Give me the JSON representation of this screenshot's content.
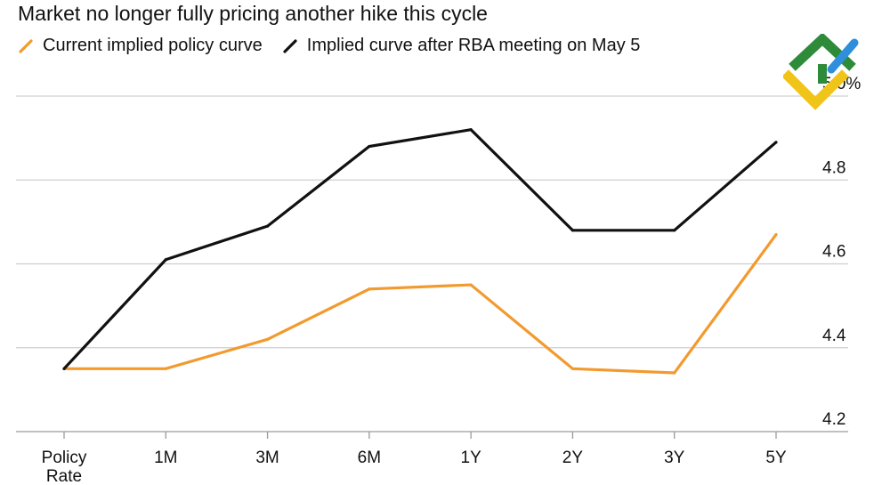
{
  "chart_data": {
    "type": "line",
    "title": "Market no longer fully pricing another hike this cycle",
    "categories": [
      "Policy Rate",
      "1M",
      "3M",
      "6M",
      "1Y",
      "2Y",
      "3Y",
      "5Y"
    ],
    "category_labels": [
      [
        "Policy",
        "Rate"
      ],
      [
        "1M"
      ],
      [
        "3M"
      ],
      [
        "6M"
      ],
      [
        "1Y"
      ],
      [
        "2Y"
      ],
      [
        "3Y"
      ],
      [
        "5Y"
      ]
    ],
    "series": [
      {
        "name": "Current implied policy curve",
        "color": "#f29a2e",
        "values": [
          4.35,
          4.35,
          4.42,
          4.54,
          4.55,
          4.35,
          4.34,
          4.67
        ]
      },
      {
        "name": "Implied curve after RBA meeting on May 5",
        "color": "#111111",
        "values": [
          4.35,
          4.61,
          4.69,
          4.88,
          4.92,
          4.68,
          4.68,
          4.89
        ]
      }
    ],
    "ylim": [
      4.2,
      5.0
    ],
    "yticks": [
      {
        "value": 4.2,
        "label": "4.2"
      },
      {
        "value": 4.4,
        "label": "4.4"
      },
      {
        "value": 4.6,
        "label": "4.6"
      },
      {
        "value": 4.8,
        "label": "4.8"
      },
      {
        "value": 5.0,
        "label": "5.0%"
      }
    ],
    "grid": true,
    "legend_position": "top-left",
    "axis_side": "right"
  },
  "logo": {
    "colors": [
      "#2e8b3a",
      "#f0c419",
      "#2f8fdc"
    ]
  }
}
